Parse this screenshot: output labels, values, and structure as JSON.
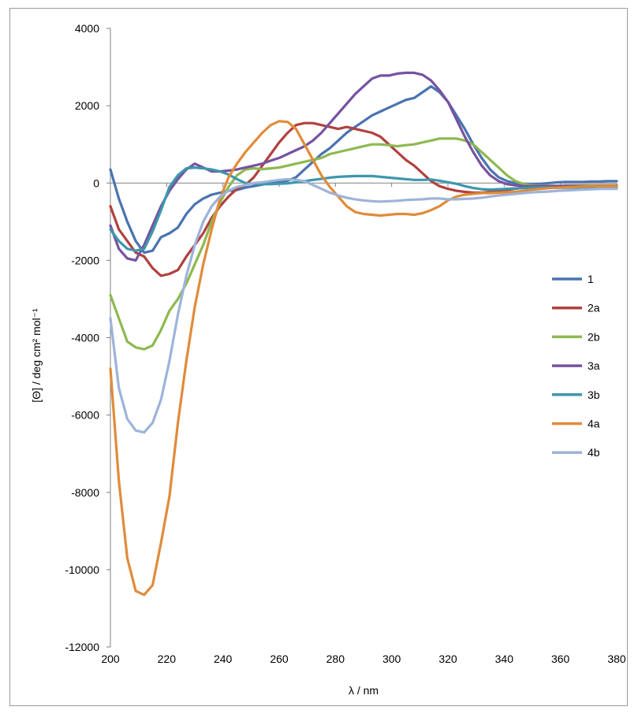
{
  "chart_data": {
    "type": "line",
    "xlabel": "λ / nm",
    "ylabel": "[Θ] / deg cm² mol⁻¹",
    "xlim": [
      200,
      380
    ],
    "ylim": [
      -12000,
      4000
    ],
    "xticks": [
      "200",
      "220",
      "240",
      "260",
      "280",
      "300",
      "320",
      "340",
      "360",
      "380"
    ],
    "yticks": [
      "4000",
      "2000",
      "0",
      "-2000",
      "-4000",
      "-6000",
      "-8000",
      "-10000",
      "-12000"
    ],
    "grid": false,
    "legend_position": "right",
    "series": [
      {
        "name": "1",
        "color": "#4a73b0",
        "x": [
          200,
          203,
          206,
          209,
          212,
          215,
          218,
          221,
          224,
          227,
          230,
          233,
          236,
          239,
          242,
          245,
          248,
          251,
          254,
          257,
          260,
          263,
          266,
          269,
          272,
          275,
          278,
          281,
          284,
          287,
          290,
          293,
          296,
          299,
          302,
          305,
          308,
          311,
          314,
          317,
          320,
          323,
          326,
          329,
          332,
          335,
          338,
          341,
          344,
          347,
          350,
          353,
          356,
          359,
          362,
          365,
          368,
          371,
          374,
          377,
          380
        ],
        "y": [
          350,
          -400,
          -1000,
          -1500,
          -1800,
          -1750,
          -1400,
          -1300,
          -1150,
          -800,
          -550,
          -400,
          -300,
          -250,
          -200,
          -180,
          -120,
          -80,
          -40,
          0,
          20,
          60,
          150,
          350,
          550,
          750,
          900,
          1100,
          1300,
          1450,
          1600,
          1750,
          1850,
          1950,
          2050,
          2150,
          2200,
          2350,
          2500,
          2350,
          2100,
          1750,
          1400,
          1000,
          650,
          350,
          150,
          50,
          0,
          -20,
          -30,
          -20,
          0,
          20,
          30,
          30,
          30,
          40,
          40,
          50,
          50
        ]
      },
      {
        "name": "2a",
        "color": "#b0413e",
        "x": [
          200,
          203,
          206,
          209,
          212,
          215,
          218,
          221,
          224,
          227,
          230,
          233,
          236,
          239,
          242,
          245,
          248,
          251,
          254,
          257,
          260,
          263,
          266,
          269,
          272,
          275,
          278,
          281,
          284,
          287,
          290,
          293,
          296,
          299,
          302,
          305,
          308,
          311,
          314,
          317,
          320,
          323,
          326,
          329,
          332,
          335,
          338,
          341,
          344,
          347,
          350,
          353,
          356,
          359,
          362,
          365,
          368,
          371,
          374,
          377,
          380
        ],
        "y": [
          -600,
          -1200,
          -1500,
          -1800,
          -1900,
          -2200,
          -2400,
          -2350,
          -2250,
          -1900,
          -1600,
          -1300,
          -900,
          -600,
          -350,
          -150,
          -50,
          150,
          450,
          750,
          1050,
          1300,
          1500,
          1550,
          1550,
          1500,
          1450,
          1400,
          1450,
          1400,
          1350,
          1300,
          1200,
          1000,
          800,
          600,
          450,
          250,
          50,
          -80,
          -150,
          -200,
          -230,
          -250,
          -250,
          -230,
          -200,
          -180,
          -150,
          -120,
          -100,
          -90,
          -80,
          -70,
          -60,
          -60,
          -60,
          -60,
          -60,
          -60,
          -60
        ]
      },
      {
        "name": "2b",
        "color": "#8db94f",
        "x": [
          200,
          203,
          206,
          209,
          212,
          215,
          218,
          221,
          224,
          227,
          230,
          233,
          236,
          239,
          242,
          245,
          248,
          251,
          254,
          257,
          260,
          263,
          266,
          269,
          272,
          275,
          278,
          281,
          284,
          287,
          290,
          293,
          296,
          299,
          302,
          305,
          308,
          311,
          314,
          317,
          320,
          323,
          326,
          329,
          332,
          335,
          338,
          341,
          344,
          347,
          350,
          353,
          356,
          359,
          362,
          365,
          368,
          371,
          374,
          377,
          380
        ],
        "y": [
          -2900,
          -3500,
          -4100,
          -4250,
          -4300,
          -4200,
          -3800,
          -3300,
          -3000,
          -2600,
          -2100,
          -1600,
          -1000,
          -500,
          -100,
          200,
          350,
          380,
          360,
          380,
          400,
          450,
          500,
          550,
          600,
          650,
          750,
          800,
          850,
          900,
          950,
          1000,
          1000,
          980,
          950,
          980,
          1000,
          1050,
          1100,
          1150,
          1150,
          1150,
          1100,
          1000,
          800,
          600,
          400,
          200,
          50,
          -30,
          -60,
          -70,
          -70,
          -70,
          -70,
          -70,
          -70,
          -70,
          -70,
          -70,
          -70
        ]
      },
      {
        "name": "3a",
        "color": "#7652a0",
        "x": [
          200,
          203,
          206,
          209,
          212,
          215,
          218,
          221,
          224,
          227,
          230,
          233,
          236,
          239,
          242,
          245,
          248,
          251,
          254,
          257,
          260,
          263,
          266,
          269,
          272,
          275,
          278,
          281,
          284,
          287,
          290,
          293,
          296,
          299,
          302,
          305,
          308,
          311,
          314,
          317,
          320,
          323,
          326,
          329,
          332,
          335,
          338,
          341,
          344,
          347,
          350,
          353,
          356,
          359,
          362,
          365,
          368,
          371,
          374,
          377,
          380
        ],
        "y": [
          -1100,
          -1700,
          -1950,
          -2000,
          -1600,
          -1100,
          -600,
          -200,
          100,
          350,
          500,
          400,
          300,
          300,
          320,
          350,
          400,
          450,
          500,
          580,
          650,
          750,
          850,
          950,
          1100,
          1300,
          1550,
          1800,
          2050,
          2300,
          2500,
          2700,
          2780,
          2780,
          2830,
          2850,
          2850,
          2800,
          2650,
          2400,
          2100,
          1650,
          1200,
          800,
          450,
          200,
          50,
          -30,
          -60,
          -80,
          -80,
          -80,
          -80,
          -80,
          -80,
          -80,
          -80,
          -80,
          -80,
          -80,
          -80
        ]
      },
      {
        "name": "3b",
        "color": "#3d97ac",
        "x": [
          200,
          203,
          206,
          209,
          212,
          215,
          218,
          221,
          224,
          227,
          230,
          233,
          236,
          239,
          242,
          245,
          248,
          251,
          254,
          257,
          260,
          263,
          266,
          269,
          272,
          275,
          278,
          281,
          284,
          287,
          290,
          293,
          296,
          299,
          302,
          305,
          308,
          311,
          314,
          317,
          320,
          323,
          326,
          329,
          332,
          335,
          338,
          341,
          344,
          347,
          350,
          353,
          356,
          359,
          362,
          365,
          368,
          371,
          374,
          377,
          380
        ],
        "y": [
          -1200,
          -1500,
          -1700,
          -1750,
          -1700,
          -1250,
          -700,
          -100,
          200,
          380,
          400,
          380,
          350,
          300,
          220,
          100,
          0,
          -20,
          -30,
          -30,
          -20,
          -10,
          20,
          50,
          80,
          110,
          140,
          160,
          170,
          180,
          180,
          180,
          160,
          140,
          120,
          100,
          80,
          80,
          90,
          60,
          20,
          -20,
          -80,
          -130,
          -160,
          -170,
          -160,
          -150,
          -140,
          -130,
          -120,
          -120,
          -120,
          -120,
          -120,
          -120,
          -120,
          -120,
          -120,
          -120,
          -120
        ]
      },
      {
        "name": "4a",
        "color": "#e08b3a",
        "x": [
          200,
          203,
          206,
          209,
          212,
          215,
          218,
          221,
          224,
          227,
          230,
          233,
          236,
          239,
          242,
          245,
          248,
          251,
          254,
          257,
          260,
          263,
          266,
          269,
          272,
          275,
          278,
          281,
          284,
          287,
          290,
          293,
          296,
          299,
          302,
          305,
          308,
          311,
          314,
          317,
          320,
          323,
          326,
          329,
          332,
          335,
          338,
          341,
          344,
          347,
          350,
          353,
          356,
          359,
          362,
          365,
          368,
          371,
          374,
          377,
          380
        ],
        "y": [
          -4800,
          -7700,
          -9700,
          -10550,
          -10650,
          -10400,
          -9300,
          -8100,
          -6200,
          -4600,
          -3200,
          -2100,
          -1200,
          -400,
          150,
          500,
          800,
          1050,
          1300,
          1500,
          1600,
          1580,
          1400,
          1000,
          600,
          200,
          -100,
          -350,
          -600,
          -750,
          -800,
          -820,
          -840,
          -820,
          -800,
          -800,
          -820,
          -780,
          -700,
          -600,
          -450,
          -350,
          -300,
          -280,
          -260,
          -260,
          -250,
          -240,
          -230,
          -200,
          -170,
          -150,
          -130,
          -120,
          -110,
          -100,
          -90,
          -80,
          -80,
          -80,
          -80
        ]
      },
      {
        "name": "4b",
        "color": "#9db3d9",
        "x": [
          200,
          203,
          206,
          209,
          212,
          215,
          218,
          221,
          224,
          227,
          230,
          233,
          236,
          239,
          242,
          245,
          248,
          251,
          254,
          257,
          260,
          263,
          266,
          269,
          272,
          275,
          278,
          281,
          284,
          287,
          290,
          293,
          296,
          299,
          302,
          305,
          308,
          311,
          314,
          317,
          320,
          323,
          326,
          329,
          332,
          335,
          338,
          341,
          344,
          347,
          350,
          353,
          356,
          359,
          362,
          365,
          368,
          371,
          374,
          377,
          380
        ],
        "y": [
          -3500,
          -5300,
          -6100,
          -6400,
          -6450,
          -6200,
          -5600,
          -4600,
          -3400,
          -2400,
          -1600,
          -1000,
          -600,
          -350,
          -200,
          -100,
          -50,
          0,
          20,
          50,
          80,
          100,
          80,
          50,
          -50,
          -150,
          -250,
          -320,
          -380,
          -420,
          -450,
          -470,
          -480,
          -470,
          -460,
          -440,
          -430,
          -420,
          -400,
          -400,
          -420,
          -420,
          -410,
          -400,
          -380,
          -350,
          -320,
          -300,
          -280,
          -260,
          -240,
          -230,
          -220,
          -200,
          -190,
          -180,
          -170,
          -160,
          -150,
          -150,
          -150
        ]
      }
    ]
  }
}
